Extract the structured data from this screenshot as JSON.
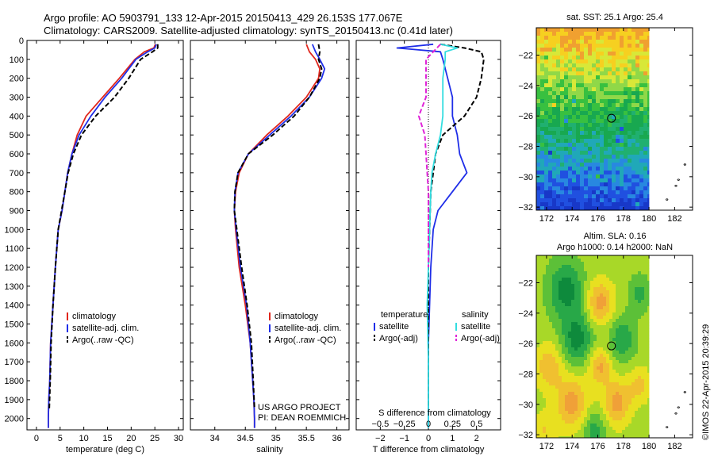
{
  "header": {
    "line1": "Argo profile: AO 5903791_133 12-Apr-2015 20150413_429 26.153S 177.067E",
    "line2": "Climatology: CARS2009. Satellite-adjusted climatology: synTS_20150413.nc (0.41d later)"
  },
  "credit": {
    "line1": "US ARGO PROJECT",
    "line2": "PI: DEAN ROEMMICH"
  },
  "watermark": "©IMOS 22-Apr-2015 20:39:29",
  "colors": {
    "red": "#e0261c",
    "blue": "#1f2ee8",
    "black": "#000000",
    "cyan": "#33dde0",
    "magenta": "#e024d8"
  },
  "chart_data": [
    {
      "id": "temperature",
      "type": "line",
      "xlabel": "temperature (deg C)",
      "xlim": [
        -2,
        31
      ],
      "xticks": [
        0,
        5,
        10,
        15,
        20,
        25,
        30
      ],
      "ylim": [
        2060,
        0
      ],
      "yticks": [
        0,
        100,
        200,
        300,
        400,
        500,
        600,
        700,
        800,
        900,
        1000,
        1100,
        1200,
        1300,
        1400,
        1500,
        1600,
        1700,
        1800,
        1900,
        2000
      ],
      "legend": [
        "climatology",
        "satellite-adj. clim.",
        "Argo(..raw -QC)"
      ],
      "series": [
        {
          "name": "climatology",
          "color": "red",
          "dash": "",
          "x": [
            25.1,
            24.8,
            22.8,
            20.8,
            17.5,
            14.0,
            10.5,
            8.6,
            7.5,
            6.6,
            6.0,
            5.4,
            4.6,
            4.0,
            3.5,
            3.0,
            2.8,
            2.6,
            2.5,
            2.5
          ],
          "y": [
            20,
            40,
            60,
            100,
            200,
            300,
            400,
            500,
            600,
            700,
            800,
            900,
            1000,
            1200,
            1400,
            1600,
            1800,
            1900,
            2000,
            2050
          ]
        },
        {
          "name": "satellite-adj. clim.",
          "color": "blue",
          "dash": "",
          "x": [
            25.3,
            25.0,
            23.5,
            21.0,
            18.0,
            14.5,
            11.5,
            9.0,
            7.5,
            6.6,
            6.0,
            5.4,
            4.6,
            4.0,
            3.5,
            3.0,
            2.8,
            2.6,
            2.5,
            2.5
          ],
          "y": [
            20,
            40,
            60,
            100,
            200,
            300,
            400,
            500,
            600,
            700,
            800,
            900,
            1000,
            1200,
            1400,
            1600,
            1800,
            1900,
            2000,
            2050
          ]
        },
        {
          "name": "Argo(..raw -QC)",
          "color": "black",
          "dash": "6,3",
          "x": [
            25.6,
            25.6,
            24.5,
            22.0,
            19.5,
            16.5,
            12.5,
            9.5,
            7.8,
            6.7,
            6.0,
            5.3,
            4.6,
            4.0,
            3.5,
            3.1,
            2.9,
            2.7
          ],
          "y": [
            20,
            40,
            60,
            100,
            200,
            300,
            400,
            500,
            600,
            700,
            800,
            900,
            1000,
            1200,
            1400,
            1600,
            1800,
            1950
          ]
        }
      ]
    },
    {
      "id": "salinity",
      "type": "line",
      "xlabel": "salinity",
      "xlim": [
        33.6,
        36.2
      ],
      "xticks": [
        34,
        34.5,
        35,
        35.5,
        36
      ],
      "ylim": [
        2060,
        0
      ],
      "legend": [
        "climatology",
        "satellite-adj. clim.",
        "Argo(..raw -QC)"
      ],
      "series": [
        {
          "name": "climatology",
          "color": "red",
          "dash": "",
          "x": [
            35.5,
            35.55,
            35.65,
            35.72,
            35.7,
            35.5,
            35.2,
            34.85,
            34.55,
            34.4,
            34.34,
            34.32,
            34.34,
            34.4,
            34.5,
            34.58,
            34.62,
            34.64,
            34.65,
            34.65
          ],
          "y": [
            20,
            60,
            100,
            150,
            200,
            300,
            400,
            500,
            600,
            700,
            800,
            900,
            1000,
            1200,
            1400,
            1600,
            1800,
            1900,
            2000,
            2050
          ]
        },
        {
          "name": "satellite-adj. clim.",
          "color": "blue",
          "dash": "",
          "x": [
            35.6,
            35.65,
            35.72,
            35.8,
            35.75,
            35.55,
            35.25,
            34.9,
            34.55,
            34.38,
            34.33,
            34.32,
            34.35,
            34.42,
            34.52,
            34.58,
            34.62,
            34.64,
            34.65,
            34.65
          ],
          "y": [
            20,
            60,
            100,
            150,
            200,
            300,
            400,
            500,
            600,
            700,
            800,
            900,
            1000,
            1200,
            1400,
            1600,
            1800,
            1900,
            2000,
            2050
          ]
        },
        {
          "name": "Argo(..raw -QC)",
          "color": "black",
          "dash": "6,3",
          "x": [
            35.7,
            35.72,
            35.7,
            35.75,
            35.72,
            35.55,
            35.3,
            34.95,
            34.55,
            34.38,
            34.33,
            34.32,
            34.36,
            34.44,
            34.53,
            34.6,
            34.63,
            34.65
          ],
          "y": [
            20,
            60,
            100,
            150,
            200,
            300,
            400,
            500,
            600,
            700,
            800,
            900,
            1000,
            1200,
            1400,
            1600,
            1800,
            1950
          ]
        }
      ]
    },
    {
      "id": "difference",
      "type": "line",
      "xlabel": "T difference from climatology",
      "xlabel_top": "S difference from climatology",
      "xlim": [
        -3,
        3
      ],
      "xticks": [
        -2,
        -1,
        0,
        1,
        2
      ],
      "xticks_top": [
        -0.5,
        -0.25,
        0,
        0.25,
        0.5
      ],
      "xticks_top_labels": [
        "−0.5",
        "−0.25",
        "0",
        "0.25",
        "0.5"
      ],
      "ylim": [
        2060,
        0
      ],
      "legend_headers": [
        "temperature",
        "salinity"
      ],
      "legend": [
        "satellite",
        "Argo(-adj)",
        "satellite",
        "Argo(-adj)"
      ],
      "series": [
        {
          "name": "T satellite",
          "color": "blue",
          "dash": "",
          "x": [
            0.2,
            -1.3,
            0.5,
            0.6,
            0.8,
            1.0,
            1.0,
            1.2,
            1.3,
            1.6,
            1.0,
            0.4,
            0.2,
            0.1,
            0.05,
            0.0,
            0.0,
            0.0
          ],
          "y": [
            20,
            40,
            60,
            100,
            200,
            300,
            400,
            500,
            600,
            700,
            800,
            900,
            1000,
            1200,
            1400,
            1600,
            1800,
            2050
          ]
        },
        {
          "name": "T Argo(-adj)",
          "color": "black",
          "dash": "6,3",
          "x": [
            0.5,
            1.5,
            2.2,
            2.3,
            2.2,
            2.0,
            1.5,
            0.6,
            0.3,
            0.2,
            0.1,
            0.05,
            0.0,
            0.0,
            0.0,
            0.0
          ],
          "y": [
            20,
            40,
            60,
            100,
            200,
            300,
            400,
            500,
            600,
            700,
            800,
            1000,
            1200,
            1400,
            1700,
            1950
          ]
        },
        {
          "name": "S satellite",
          "color": "cyan",
          "dash": "",
          "x": [
            0.5,
            1.2,
            0.7,
            0.7,
            0.6,
            0.6,
            0.6,
            0.5,
            0.3,
            0.15,
            0.1,
            0.05,
            0.0,
            -0.05,
            0.0,
            0.0
          ],
          "y": [
            20,
            40,
            60,
            100,
            200,
            300,
            400,
            500,
            600,
            700,
            800,
            1000,
            1200,
            1400,
            1700,
            2050
          ]
        },
        {
          "name": "S Argo(-adj)",
          "color": "magenta",
          "dash": "6,3",
          "x": [
            0.5,
            0.2,
            -0.1,
            -0.1,
            -0.1,
            -0.4,
            -0.15,
            -0.1,
            -0.05,
            0.0,
            0.0,
            0.0
          ],
          "y": [
            20,
            60,
            100,
            200,
            300,
            400,
            500,
            600,
            700,
            800,
            1000,
            1200
          ]
        }
      ]
    },
    {
      "id": "sst_map",
      "type": "heatmap",
      "title": "sat. SST: 25.1  Argo: 25.4",
      "xlim": [
        171.2,
        183.4
      ],
      "xticks": [
        172,
        174,
        176,
        178,
        180,
        182
      ],
      "ylim": [
        -32.2,
        -20.2
      ],
      "yticks": [
        -22,
        -24,
        -26,
        -28,
        -30,
        -32
      ],
      "marker": {
        "lon": 177.067,
        "lat": -26.153
      }
    },
    {
      "id": "sla_map",
      "type": "heatmap",
      "title_line1": "Altim. SLA: 0.16",
      "title_line2": "Argo h1000: 0.14  h2000: NaN",
      "xlim": [
        171.2,
        183.4
      ],
      "xticks": [
        172,
        174,
        176,
        178,
        180,
        182
      ],
      "ylim": [
        -32.2,
        -20.2
      ],
      "yticks": [
        -22,
        -24,
        -26,
        -28,
        -30,
        -32
      ],
      "marker": {
        "lon": 177.067,
        "lat": -26.153
      }
    }
  ]
}
